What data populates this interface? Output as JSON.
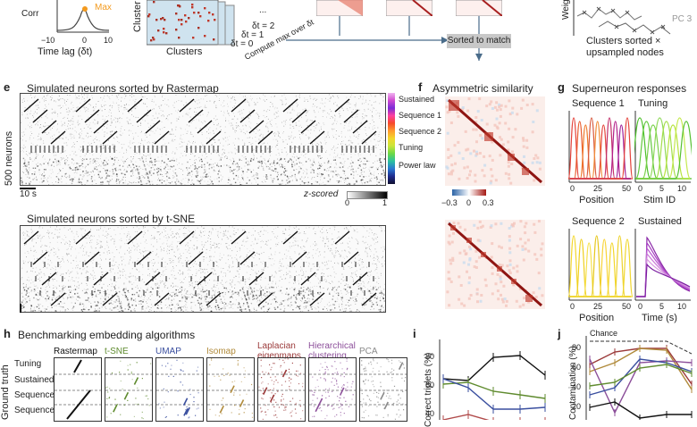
{
  "top": {
    "corr_axis_label": "Corr",
    "max_label": "Max",
    "xticks": [
      "−10",
      "0",
      "10"
    ],
    "xlabel": "Time lag (δt)",
    "clusters_label": "Clusters",
    "cluster_vertical": "Cluster",
    "dt_labels": [
      "δt = 2",
      "δt = 1",
      "δt = 0"
    ],
    "ellipsis": "...",
    "compute_label": "Compute max over δt",
    "sorted_button": "Sorted to match",
    "weight_label": "Weigh",
    "pc3_label": "PC 3",
    "sorted_caption": "Clusters sorted ×\nupsampled nodes"
  },
  "panel_e": {
    "letter": "e",
    "title1": "Simulated neurons sorted by Rastermap",
    "title2": "Simulated neurons sorted by t-SNE",
    "ylabel": "500 neurons",
    "scale": "10 s",
    "legend": [
      "Sustained",
      "Sequence 1",
      "Sequence 2",
      "Tuning",
      "Power law"
    ],
    "zscored": "z-scored",
    "cticks": [
      "0",
      "1"
    ],
    "colorbar": [
      "#f0b4f0",
      "#d04ad0",
      "#7a2cd6",
      "#ff40a0",
      "#f54a2a",
      "#ff9b2e",
      "#f3d72c",
      "#c9e53a",
      "#6ad846",
      "#2bc0a0",
      "#2a77d2",
      "#1f2a8c",
      "#101030"
    ]
  },
  "panel_f": {
    "letter": "f",
    "title": "Asymmetric similarity",
    "cticks": [
      "−0.3",
      "0",
      "0.3"
    ]
  },
  "panel_g": {
    "letter": "g",
    "title": "Superneuron responses",
    "sub": [
      {
        "name": "Sequence 1",
        "xticks": [
          "0",
          "25",
          "50"
        ],
        "xlabel": "Position"
      },
      {
        "name": "Tuning",
        "xticks": [
          "0",
          "5",
          "10"
        ],
        "xlabel": "Stim ID"
      },
      {
        "name": "Sequence 2",
        "xticks": [
          "0",
          "25",
          "50"
        ],
        "xlabel": "Position"
      },
      {
        "name": "Sustained",
        "xticks": [
          "0",
          "5",
          "10"
        ],
        "xlabel": "Time (s)"
      }
    ]
  },
  "panel_h": {
    "letter": "h",
    "title": "Benchmarking embedding algorithms",
    "ylabel": "Ground truth",
    "rows": [
      "Tuning",
      "Sustained",
      "Sequence 1",
      "Sequence 2"
    ],
    "methods": [
      {
        "name": "Rastermap",
        "color": "#111111"
      },
      {
        "name": "t-SNE",
        "color": "#5f8b2e"
      },
      {
        "name": "UMAP",
        "color": "#3a4f9f"
      },
      {
        "name": "Isomap",
        "color": "#b08a3a"
      },
      {
        "name": "Laplacian\neigenmaps",
        "color": "#9b3a3a"
      },
      {
        "name": "Hierarchical\nclustering",
        "color": "#8c4f9a"
      },
      {
        "name": "PCA",
        "color": "#8a8a8a"
      }
    ]
  },
  "panel_i": {
    "letter": "i",
    "ylabel": "Correct triplets (%)",
    "yticks": [
      "80",
      "60",
      "40"
    ]
  },
  "panel_j": {
    "letter": "j",
    "ylabel": "Contamination (%)",
    "yticks": [
      "80",
      "60",
      "40",
      "20"
    ],
    "chance": "Chance"
  }
}
